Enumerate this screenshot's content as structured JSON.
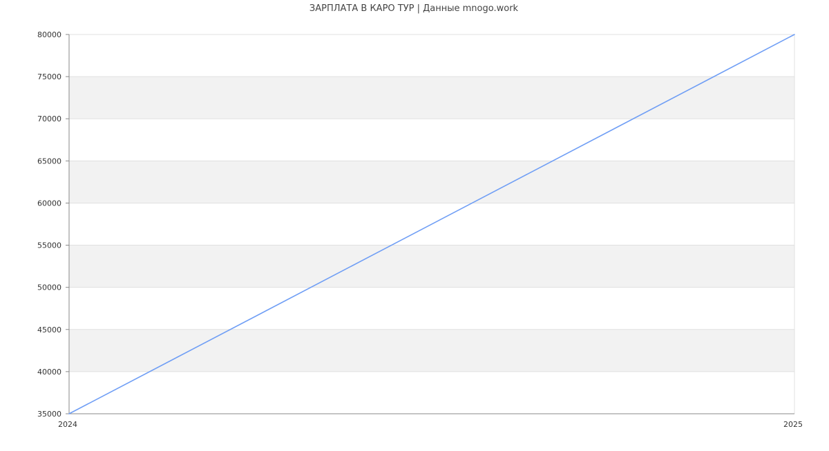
{
  "chart_data": {
    "type": "line",
    "title": "ЗАРПЛАТА В КАРО ТУР | Данные mnogo.work",
    "xlabel": "",
    "ylabel": "",
    "x_ticks": [
      "2024",
      "2025"
    ],
    "y_ticks": [
      35000,
      40000,
      45000,
      50000,
      55000,
      60000,
      65000,
      70000,
      75000,
      80000
    ],
    "ylim": [
      35000,
      80000
    ],
    "grid": true,
    "legend": "none",
    "series": [
      {
        "x": [
          "2024",
          "2025"
        ],
        "values": [
          35000,
          80000
        ]
      }
    ],
    "colors": {
      "line": "#6f9ef5",
      "band": "#f2f2f2",
      "grid": "#e0e0e0",
      "axis": "#888888",
      "text": "#333333"
    }
  }
}
